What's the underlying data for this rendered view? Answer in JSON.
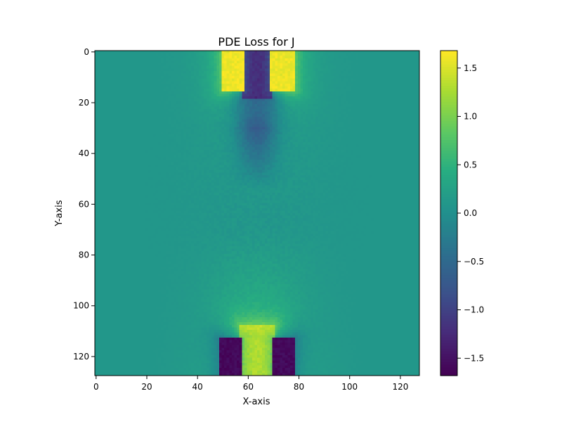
{
  "chart_data": {
    "type": "heatmap",
    "title": "PDE Loss for J",
    "xlabel": "X-axis",
    "ylabel": "Y-axis",
    "xlim": [
      -0.5,
      127.5
    ],
    "ylim": [
      127.5,
      -0.5
    ],
    "y_inverted": true,
    "grid": false,
    "colormap": "viridis",
    "grid_size": [
      128,
      128
    ],
    "x_ticks": [
      0,
      20,
      40,
      60,
      80,
      100,
      120
    ],
    "x_tick_labels": [
      "0",
      "20",
      "40",
      "60",
      "80",
      "100",
      "120"
    ],
    "y_ticks": [
      0,
      20,
      40,
      60,
      80,
      100,
      120
    ],
    "y_tick_labels": [
      "0",
      "20",
      "40",
      "60",
      "80",
      "100",
      "120"
    ],
    "colorbar": {
      "range": [
        -1.68,
        1.68
      ],
      "ticks": [
        -1.5,
        -1.0,
        -0.5,
        0.0,
        0.5,
        1.0,
        1.5
      ],
      "tick_labels": [
        "−1.5",
        "−1.0",
        "−0.5",
        "0.0",
        "0.5",
        "1.0",
        "1.5"
      ]
    },
    "background_value": 0.1,
    "features": [
      {
        "x_range": [
          58,
          69
        ],
        "y_range": [
          0,
          18
        ],
        "value": -1.68
      },
      {
        "x_range": [
          50,
          58
        ],
        "y_range": [
          0,
          15
        ],
        "value": 1.68
      },
      {
        "x_range": [
          69,
          78
        ],
        "y_range": [
          0,
          15
        ],
        "value": 1.68
      },
      {
        "x_range": [
          57,
          70
        ],
        "y_range": [
          108,
          127
        ],
        "value": 1.68
      },
      {
        "x_range": [
          49,
          57
        ],
        "y_range": [
          113,
          127
        ],
        "value": -1.68
      },
      {
        "x_range": [
          70,
          78
        ],
        "y_range": [
          113,
          127
        ],
        "value": -1.68
      }
    ]
  }
}
